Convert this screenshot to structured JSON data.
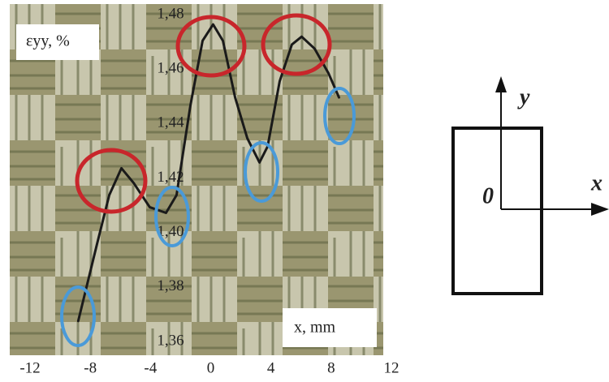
{
  "chart_data": {
    "type": "line",
    "y_label": "εyy, %",
    "x_label": "x, mm",
    "x": [
      -8.8,
      -7.55,
      -6.74,
      -5.93,
      -5.12,
      -4.05,
      -2.97,
      -2.27,
      -1.35,
      -0.54,
      0.16,
      0.81,
      1.62,
      2.43,
      3.24,
      3.78,
      4.58,
      5.39,
      6.04,
      6.9,
      7.82,
      8.52
    ],
    "series": [
      {
        "color": "#1a1a1a",
        "values": [
          1.3675,
          1.3958,
          1.4137,
          1.4236,
          1.4182,
          1.4093,
          1.4072,
          1.4137,
          1.4466,
          1.4704,
          1.4764,
          1.4704,
          1.4496,
          1.4346,
          1.4257,
          1.4316,
          1.4555,
          1.469,
          1.4719,
          1.4675,
          1.4585,
          1.4496
        ]
      }
    ],
    "xlim": [
      -12,
      12
    ],
    "ylim": [
      1.36,
      1.48
    ],
    "xticks": [
      -12,
      -8,
      -4,
      0,
      4,
      8,
      12
    ],
    "yticks": [
      {
        "value": 1.48,
        "label": "1,48"
      },
      {
        "value": 1.46,
        "label": "1,46"
      },
      {
        "value": 1.44,
        "label": "1,44"
      },
      {
        "value": 1.42,
        "label": "1,42"
      },
      {
        "value": 1.4,
        "label": "1,40"
      },
      {
        "value": 1.38,
        "label": "1,38"
      },
      {
        "value": 1.36,
        "label": "1,36"
      }
    ]
  },
  "diagram": {
    "y_axis_label": "y",
    "x_axis_label": "x",
    "origin_label": "0"
  }
}
